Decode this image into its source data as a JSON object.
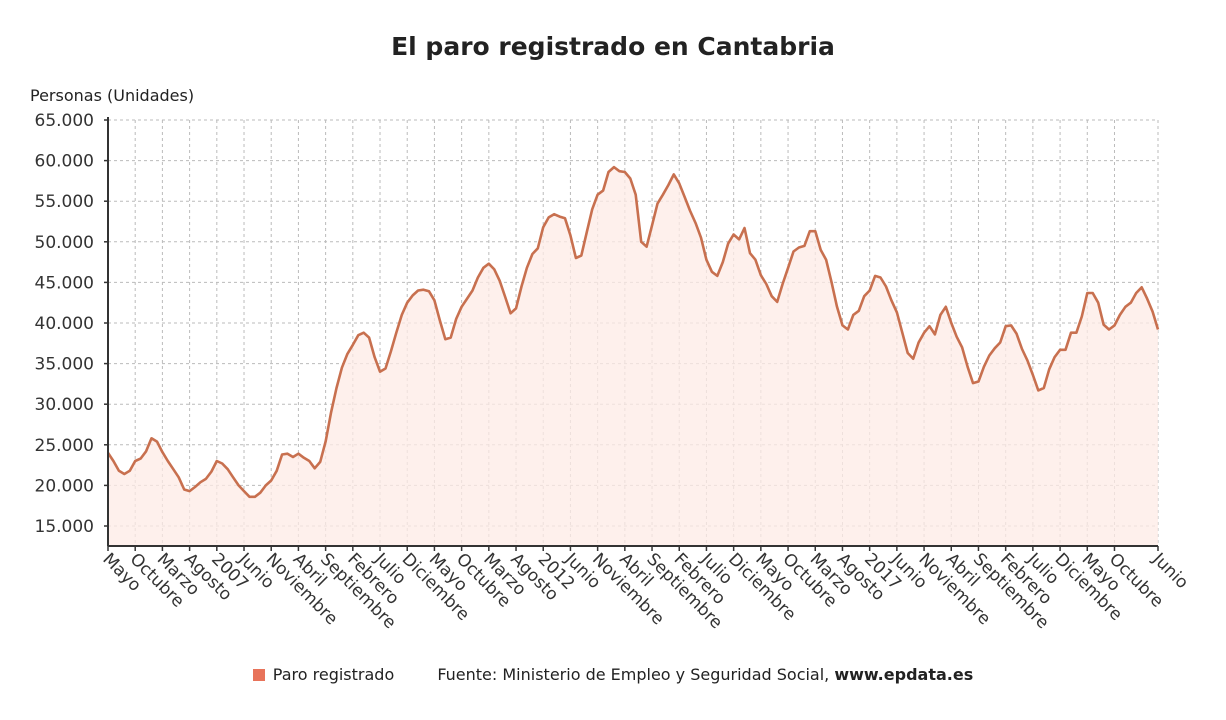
{
  "chart_data": {
    "type": "area",
    "title": "El paro registrado en Cantabria",
    "ylabel": "Personas (Unidades)",
    "xlabel": "",
    "x_start": "Mayo 2005",
    "x_end": "Junio 2021",
    "x_frequency": "monthly",
    "ylim": [
      13000,
      65000
    ],
    "yticks": [
      15000,
      20000,
      25000,
      30000,
      35000,
      40000,
      45000,
      50000,
      55000,
      60000,
      65000
    ],
    "ytick_labels": [
      "15.000",
      "20.000",
      "25.000",
      "30.000",
      "35.000",
      "40.000",
      "45.000",
      "50.000",
      "55.000",
      "60.000",
      "65.000"
    ],
    "xtick_labels": [
      "Mayo",
      "Octubre",
      "Marzo",
      "Agosto",
      "2007",
      "Junio",
      "Noviembre",
      "Abril",
      "Septiembre",
      "Febrero",
      "Julio",
      "Diciembre",
      "Mayo",
      "Octubre",
      "Marzo",
      "Agosto",
      "2012",
      "Junio",
      "Noviembre",
      "Abril",
      "Septiembre",
      "Febrero",
      "Julio",
      "Diciembre",
      "Mayo",
      "Octubre",
      "Marzo",
      "Agosto",
      "2017",
      "Junio",
      "Noviembre",
      "Abril",
      "Septiembre",
      "Febrero",
      "Julio",
      "Diciembre",
      "Mayo",
      "Octubre",
      "Junio"
    ],
    "grid": true,
    "legend_position": "bottom",
    "series": [
      {
        "name": "Paro registrado",
        "color": "#c8704f",
        "fill": "#fdebe6",
        "values": [
          24000,
          23000,
          21800,
          21400,
          21800,
          23000,
          23300,
          24200,
          25800,
          25400,
          24100,
          23000,
          22000,
          21000,
          19500,
          19300,
          19800,
          20400,
          20800,
          21700,
          23000,
          22700,
          22000,
          21000,
          20000,
          19300,
          18600,
          18600,
          19100,
          20000,
          20600,
          21800,
          23800,
          23900,
          23500,
          23900,
          23400,
          23000,
          22100,
          22900,
          25400,
          29000,
          32000,
          34500,
          36200,
          37300,
          38500,
          38800,
          38200,
          35800,
          34000,
          34400,
          36500,
          38800,
          41000,
          42500,
          43400,
          44000,
          44100,
          43900,
          42800,
          40300,
          38000,
          38200,
          40500,
          42000,
          43000,
          44000,
          45600,
          46800,
          47300,
          46600,
          45200,
          43200,
          41200,
          41800,
          44500,
          46800,
          48500,
          49200,
          51800,
          53000,
          53400,
          53100,
          52900,
          50800,
          48000,
          48300,
          51200,
          54000,
          55800,
          56300,
          58600,
          59200,
          58700,
          58600,
          57800,
          55800,
          50000,
          49400,
          52000,
          54700,
          55800,
          57000,
          58300,
          57200,
          55500,
          53800,
          52300,
          50500,
          47800,
          46300,
          45800,
          47500,
          49800,
          50900,
          50300,
          51700,
          48600,
          47800,
          45900,
          44800,
          43300,
          42600,
          44800,
          46800,
          48800,
          49300,
          49500,
          51300,
          51300,
          49000,
          47800,
          45000,
          42000,
          39700,
          39200,
          41000,
          41500,
          43300,
          44000,
          45800,
          45600,
          44500,
          42800,
          41300,
          38800,
          36300,
          35600,
          37600,
          38800,
          39600,
          38600,
          41000,
          42000,
          40000,
          38300,
          37000,
          34600,
          32600,
          32800,
          34600,
          36000,
          36900,
          37600,
          39600,
          39700,
          38700,
          36800,
          35400,
          33600,
          31700,
          32000,
          34300,
          35800,
          36700,
          36700,
          38800,
          38800,
          40800,
          43700,
          43700,
          42500,
          39800,
          39200,
          39700,
          41000,
          42000,
          42500,
          43700,
          44400,
          43000,
          41400,
          39200
        ]
      }
    ]
  },
  "legend": {
    "series_label": "Paro registrado",
    "source_prefix": "Fuente: Ministerio de Empleo y Seguridad Social, ",
    "source_site": "www.epdata.es"
  }
}
